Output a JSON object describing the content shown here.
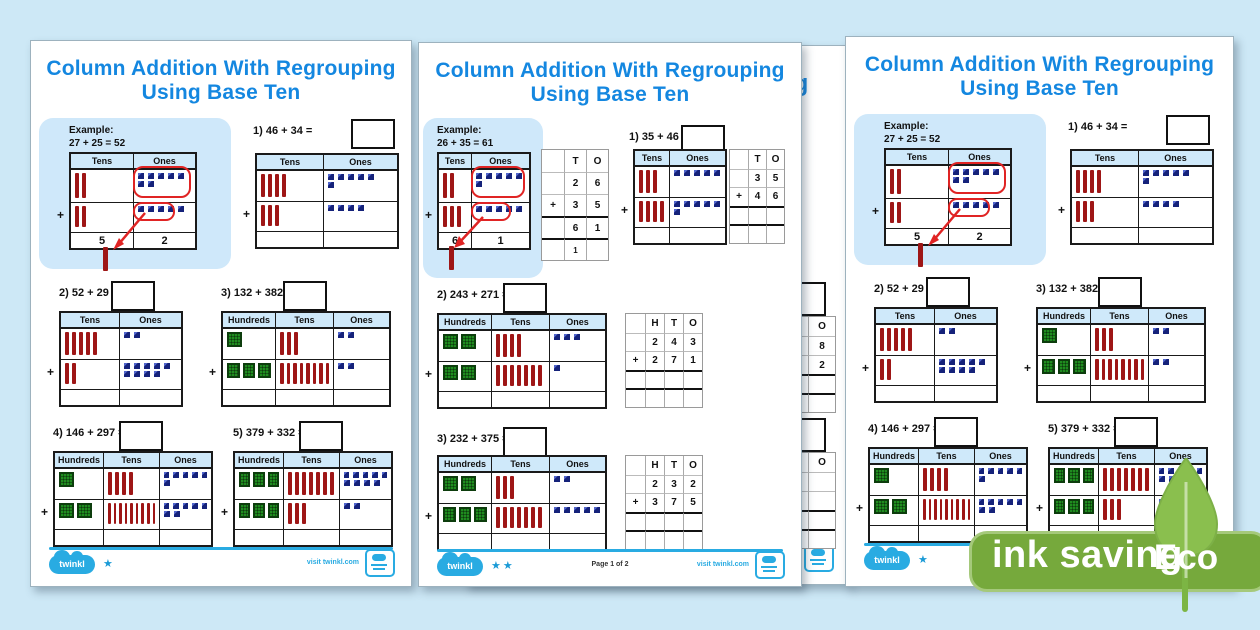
{
  "colors": {
    "background": "#cde8f6",
    "title_blue": "#1487e0",
    "accent_blue": "#29abe2",
    "table_header_bg": "#cfe9fa",
    "example_box_bg": "#cfe8fa",
    "rod_red": "#9e1616",
    "cube_blue": "#15227a",
    "hundred_green": "#1f8c1f",
    "annotation_red": "#e02424",
    "eco_pill_green": "#76a93c",
    "eco_leaf_green": "#8abf4e"
  },
  "eco": {
    "text": "ink saving",
    "label": "Eco"
  },
  "hidden": {
    "title_fragment": "g",
    "grid1": {
      "cols": 2,
      "rows": [
        {
          "cells": [
            "",
            "O"
          ]
        },
        {
          "cells": [
            "",
            "8"
          ]
        },
        {
          "cells": [
            "",
            "2"
          ]
        },
        {
          "cells": [
            "",
            ""
          ],
          "thick": true
        },
        {
          "cells": [
            "",
            ""
          ],
          "thick": true
        }
      ]
    },
    "grid2": {
      "cols": 2,
      "rows": [
        {
          "cells": [
            "",
            "O"
          ]
        },
        {
          "cells": [
            "",
            ""
          ]
        },
        {
          "cells": [
            "",
            ""
          ]
        },
        {
          "cells": [
            "",
            ""
          ],
          "thick": true
        },
        {
          "cells": [
            "",
            ""
          ],
          "thick": true
        }
      ]
    }
  },
  "pages": [
    {
      "variant": "blocks",
      "side": "left",
      "title_line1": "Column Addition With Regrouping",
      "title_line2": "Using Base Ten",
      "example": {
        "heading": "Example:",
        "equation": "27 + 25 = 52",
        "columns": [
          "Tens",
          "Ones"
        ],
        "rows": [
          {
            "t": 2,
            "o": 7
          },
          {
            "t": 2,
            "o": 5
          }
        ],
        "answer": [
          "5",
          "2"
        ]
      },
      "problems": [
        {
          "label": "1) 46 + 34 =",
          "columns": [
            "Tens",
            "Ones"
          ],
          "rows": [
            {
              "t": 4,
              "o": 6
            },
            {
              "t": 3,
              "o": 4
            }
          ]
        },
        {
          "label": "2) 52 + 29 =",
          "columns": [
            "Tens",
            "Ones"
          ],
          "rows": [
            {
              "t": 5,
              "o": 2
            },
            {
              "t": 2,
              "o": 9
            }
          ]
        },
        {
          "label": "3) 132 + 382 =",
          "columns": [
            "Hundreds",
            "Tens",
            "Ones"
          ],
          "rows": [
            {
              "h": 1,
              "t": 3,
              "o": 2
            },
            {
              "h": 3,
              "t": 8,
              "o": 2
            }
          ]
        },
        {
          "label": "4) 146 + 297 =",
          "columns": [
            "Hundreds",
            "Tens",
            "Ones"
          ],
          "rows": [
            {
              "h": 1,
              "t": 4,
              "o": 6
            },
            {
              "h": 2,
              "t": 9,
              "o": 7
            }
          ]
        },
        {
          "label": "5) 379 + 332 =",
          "columns": [
            "Hundreds",
            "Tens",
            "Ones"
          ],
          "rows": [
            {
              "h": 3,
              "t": 7,
              "o": 9
            },
            {
              "h": 3,
              "t": 3,
              "o": 2
            }
          ]
        }
      ],
      "footer": {
        "brand": "twinkl",
        "stars": 1,
        "visit": "visit twinkl.com",
        "page_label": ""
      }
    },
    {
      "variant": "grids",
      "side": "middle",
      "title_line1": "Column Addition With Regrouping",
      "title_line2": "Using Base Ten",
      "example": {
        "heading": "Example:",
        "equation": "26 + 35 = 61",
        "columns": [
          "Tens",
          "Ones"
        ],
        "rows": [
          {
            "t": 2,
            "o": 6
          },
          {
            "t": 3,
            "o": 5
          }
        ],
        "answer": [
          "6",
          "1"
        ],
        "grid": {
          "cols": 3,
          "rows": [
            {
              "cells": [
                "",
                "T",
                "O"
              ]
            },
            {
              "cells": [
                "",
                "2",
                "6"
              ]
            },
            {
              "cells": [
                "+",
                "3",
                "5"
              ]
            },
            {
              "cells": [
                "",
                "6",
                "1"
              ],
              "thick": true
            },
            {
              "cells": [
                "",
                "1",
                ""
              ],
              "thick": true,
              "small": true
            }
          ]
        }
      },
      "problems": [
        {
          "label": "1) 35 + 46 =",
          "columns": [
            "Tens",
            "Ones"
          ],
          "rows": [
            {
              "t": 3,
              "o": 5
            },
            {
              "t": 4,
              "o": 6
            }
          ],
          "grid": {
            "cols": 3,
            "rows": [
              {
                "cells": [
                  "",
                  "T",
                  "O"
                ]
              },
              {
                "cells": [
                  "",
                  "3",
                  "5"
                ]
              },
              {
                "cells": [
                  "+",
                  "4",
                  "6"
                ]
              },
              {
                "cells": [
                  "",
                  "",
                  ""
                ],
                "thick": true
              },
              {
                "cells": [
                  "",
                  "",
                  ""
                ],
                "thick": true
              }
            ]
          }
        },
        {
          "label": "2) 243 + 271 =",
          "columns": [
            "Hundreds",
            "Tens",
            "Ones"
          ],
          "rows": [
            {
              "h": 2,
              "t": 4,
              "o": 3
            },
            {
              "h": 2,
              "t": 7,
              "o": 1
            }
          ],
          "grid": {
            "cols": 4,
            "rows": [
              {
                "cells": [
                  "",
                  "H",
                  "T",
                  "O"
                ]
              },
              {
                "cells": [
                  "",
                  "2",
                  "4",
                  "3"
                ]
              },
              {
                "cells": [
                  "+",
                  "2",
                  "7",
                  "1"
                ]
              },
              {
                "cells": [
                  "",
                  "",
                  "",
                  ""
                ],
                "thick": true
              },
              {
                "cells": [
                  "",
                  "",
                  "",
                  ""
                ],
                "thick": true
              }
            ]
          }
        },
        {
          "label": "3) 232 + 375 =",
          "columns": [
            "Hundreds",
            "Tens",
            "Ones"
          ],
          "rows": [
            {
              "h": 2,
              "t": 3,
              "o": 2
            },
            {
              "h": 3,
              "t": 7,
              "o": 5
            }
          ],
          "grid": {
            "cols": 4,
            "rows": [
              {
                "cells": [
                  "",
                  "H",
                  "T",
                  "O"
                ]
              },
              {
                "cells": [
                  "",
                  "2",
                  "3",
                  "2"
                ]
              },
              {
                "cells": [
                  "+",
                  "3",
                  "7",
                  "5"
                ]
              },
              {
                "cells": [
                  "",
                  "",
                  "",
                  ""
                ],
                "thick": true
              },
              {
                "cells": [
                  "",
                  "",
                  "",
                  ""
                ],
                "thick": true
              }
            ]
          }
        }
      ],
      "footer": {
        "brand": "twinkl",
        "stars": 2,
        "visit": "visit twinkl.com",
        "page_label": "Page 1 of 2"
      }
    },
    {
      "variant": "blocks",
      "side": "right",
      "title_line1": "Column Addition With Regrouping",
      "title_line2": "Using Base Ten",
      "example": {
        "heading": "Example:",
        "equation": "27 + 25 = 52",
        "columns": [
          "Tens",
          "Ones"
        ],
        "rows": [
          {
            "t": 2,
            "o": 7
          },
          {
            "t": 2,
            "o": 5
          }
        ],
        "answer": [
          "5",
          "2"
        ]
      },
      "problems": [
        {
          "label": "1) 46 + 34 =",
          "columns": [
            "Tens",
            "Ones"
          ],
          "rows": [
            {
              "t": 4,
              "o": 6
            },
            {
              "t": 3,
              "o": 4
            }
          ]
        },
        {
          "label": "2) 52 + 29 =",
          "columns": [
            "Tens",
            "Ones"
          ],
          "rows": [
            {
              "t": 5,
              "o": 2
            },
            {
              "t": 2,
              "o": 9
            }
          ]
        },
        {
          "label": "3) 132 + 382 =",
          "columns": [
            "Hundreds",
            "Tens",
            "Ones"
          ],
          "rows": [
            {
              "h": 1,
              "t": 3,
              "o": 2
            },
            {
              "h": 3,
              "t": 8,
              "o": 2
            }
          ]
        },
        {
          "label": "4) 146 + 297 =",
          "columns": [
            "Hundreds",
            "Tens",
            "Ones"
          ],
          "rows": [
            {
              "h": 1,
              "t": 4,
              "o": 6
            },
            {
              "h": 2,
              "t": 9,
              "o": 7
            }
          ]
        },
        {
          "label": "5) 379 + 332 =",
          "columns": [
            "Hundreds",
            "Tens",
            "Ones"
          ],
          "rows": [
            {
              "h": 3,
              "t": 7,
              "o": 9
            },
            {
              "h": 3,
              "t": 3,
              "o": 2
            }
          ]
        }
      ],
      "footer": {
        "brand": "twinkl",
        "stars": 1,
        "visit": "visit twinkl.com",
        "page_label": ""
      }
    }
  ]
}
